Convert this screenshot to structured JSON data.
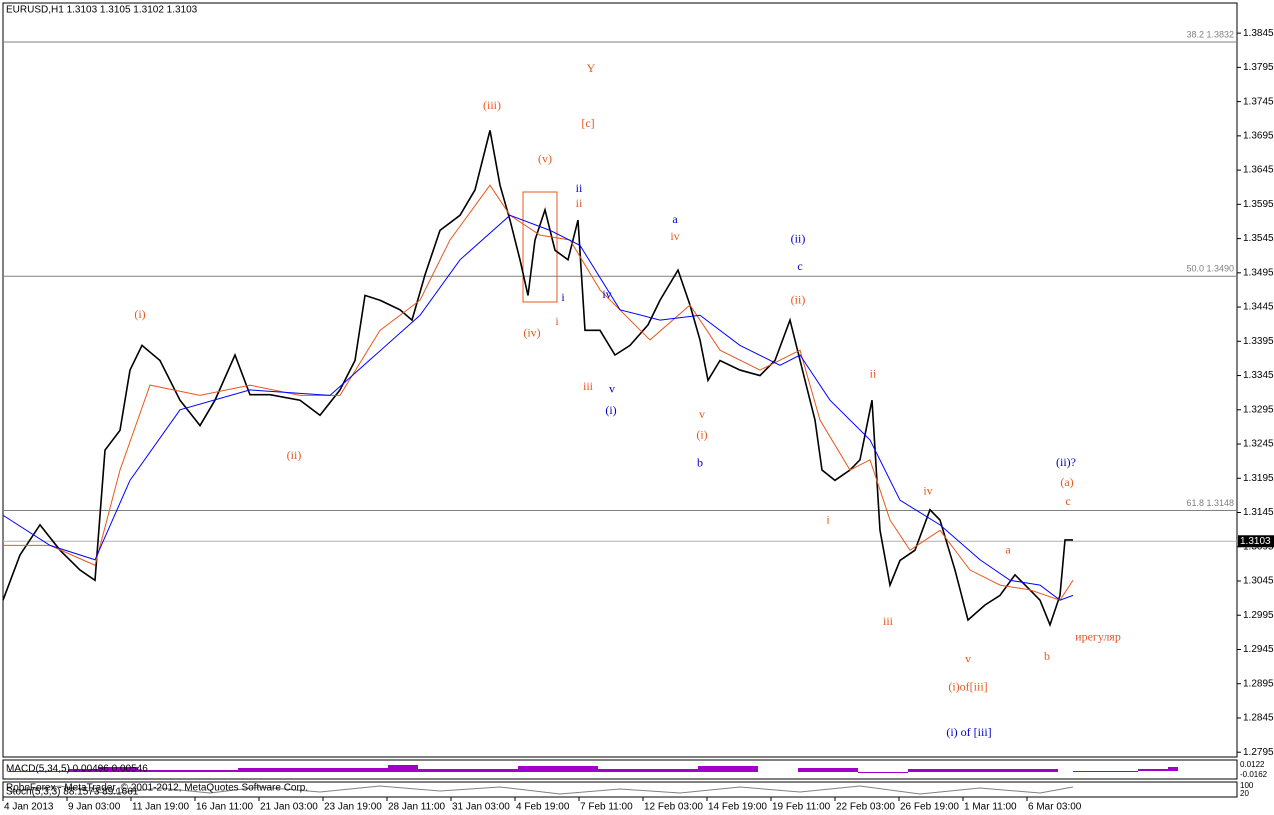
{
  "chart_data": {
    "type": "line",
    "title": "EURUSD,H1  1.3103 1.3105 1.3102 1.3103",
    "xlim": [
      0,
      1234
    ],
    "xticks": [
      {
        "value": 0,
        "label": "4 Jan 2013"
      },
      {
        "value": 64,
        "label": "9 Jan 03:00"
      },
      {
        "value": 128,
        "label": "11 Jan 19:00"
      },
      {
        "value": 192,
        "label": "16 Jan 11:00"
      },
      {
        "value": 256,
        "label": "21 Jan 03:00"
      },
      {
        "value": 320,
        "label": "23 Jan 19:00"
      },
      {
        "value": 384,
        "label": "28 Jan 11:00"
      },
      {
        "value": 448,
        "label": "31 Jan 03:00"
      },
      {
        "value": 512,
        "label": "4 Feb 19:00"
      },
      {
        "value": 576,
        "label": "7 Feb 11:00"
      },
      {
        "value": 640,
        "label": "12 Feb 03:00"
      },
      {
        "value": 704,
        "label": "14 Feb 19:00"
      },
      {
        "value": 768,
        "label": "19 Feb 11:00"
      },
      {
        "value": 832,
        "label": "22 Feb 03:00"
      },
      {
        "value": 896,
        "label": "26 Feb 19:00"
      },
      {
        "value": 960,
        "label": "1 Mar 11:00"
      },
      {
        "value": 1024,
        "label": "6 Mar 03:00"
      }
    ],
    "ylim": [
      1.2788,
      1.3889
    ],
    "yticks": [
      1.3845,
      1.3795,
      1.3745,
      1.3695,
      1.3645,
      1.3595,
      1.3545,
      1.3495,
      1.3445,
      1.3395,
      1.3345,
      1.3295,
      1.3245,
      1.3195,
      1.3145,
      1.3095,
      1.3045,
      1.2995,
      1.2945,
      1.2895,
      1.2845,
      1.2795
    ],
    "series": [
      {
        "color": "#000000",
        "x": [
          0,
          17,
          37,
          57,
          77,
          92,
          102,
          117,
          127,
          139,
          157,
          177,
          197,
          212,
          232,
          247,
          267,
          297,
          317,
          337,
          352,
          362,
          377,
          397,
          409,
          422,
          437,
          457,
          472,
          487,
          497,
          507,
          517,
          525,
          532,
          542,
          552,
          565,
          575,
          582,
          597,
          612,
          627,
          645,
          657,
          675,
          687,
          697,
          705,
          717,
          737,
          757,
          772,
          787,
          802,
          812,
          819,
          832,
          847,
          857,
          869,
          877,
          887,
          897,
          912,
          927,
          937,
          952,
          965,
          982,
          997,
          1012,
          1027,
          1037,
          1047,
          1057,
          1062,
          1070
        ],
        "values": [
          1.3017,
          1.3083,
          1.3127,
          1.309,
          1.3061,
          1.3046,
          1.3236,
          1.3265,
          1.3353,
          1.3389,
          1.3367,
          1.3309,
          1.3272,
          1.3309,
          1.3375,
          1.3317,
          1.3317,
          1.3309,
          1.3287,
          1.3324,
          1.3367,
          1.3462,
          1.3455,
          1.3441,
          1.3426,
          1.3492,
          1.3557,
          1.3579,
          1.3616,
          1.3703,
          1.3623,
          1.3572,
          1.3514,
          1.3462,
          1.3543,
          1.3587,
          1.3528,
          1.3514,
          1.3572,
          1.3411,
          1.3411,
          1.3375,
          1.3389,
          1.3419,
          1.3455,
          1.3499,
          1.3448,
          1.3397,
          1.3338,
          1.3367,
          1.3353,
          1.3345,
          1.3367,
          1.3426,
          1.3338,
          1.328,
          1.3207,
          1.3192,
          1.3207,
          1.3222,
          1.3309,
          1.3119,
          1.3039,
          1.3075,
          1.309,
          1.3149,
          1.3134,
          1.3061,
          1.2988,
          1.301,
          1.3024,
          1.3054,
          1.3032,
          1.3017,
          1.2981,
          1.3024,
          1.3105,
          1.3105
        ]
      },
      {
        "color": "#e8581c",
        "x": [
          0,
          47,
          92,
          117,
          147,
          197,
          247,
          297,
          337,
          377,
          417,
          447,
          487,
          507,
          537,
          567,
          597,
          647,
          687,
          717,
          757,
          797,
          817,
          847,
          867,
          887,
          907,
          937,
          967,
          997,
          1027,
          1057,
          1070
        ],
        "values": [
          1.3097,
          1.3097,
          1.3068,
          1.3207,
          1.3331,
          1.3316,
          1.3331,
          1.3316,
          1.3316,
          1.3411,
          1.3455,
          1.3543,
          1.3623,
          1.3579,
          1.355,
          1.3543,
          1.347,
          1.3397,
          1.3448,
          1.3382,
          1.3353,
          1.3382,
          1.328,
          1.3207,
          1.3222,
          1.3134,
          1.309,
          1.3119,
          1.3061,
          1.3039,
          1.3032,
          1.3017,
          1.3046
        ]
      },
      {
        "color": "#0000ff",
        "x": [
          0,
          47,
          92,
          127,
          177,
          247,
          327,
          367,
          417,
          457,
          507,
          547,
          577,
          617,
          657,
          697,
          737,
          777,
          797,
          827,
          867,
          897,
          937,
          977,
          1007,
          1037,
          1057,
          1070
        ],
        "values": [
          1.3141,
          1.3097,
          1.3076,
          1.3192,
          1.3295,
          1.3324,
          1.3316,
          1.3368,
          1.3433,
          1.3514,
          1.3579,
          1.3557,
          1.3535,
          1.3441,
          1.3426,
          1.3433,
          1.3389,
          1.336,
          1.3375,
          1.3309,
          1.3251,
          1.3163,
          1.3127,
          1.3076,
          1.3046,
          1.3039,
          1.3017,
          1.3024
        ]
      }
    ],
    "levels": [
      {
        "value": 1.3832,
        "label": "38.2 1.3832",
        "color": "#808080"
      },
      {
        "value": 1.349,
        "label": "50.0 1.3490",
        "color": "#808080"
      },
      {
        "value": 1.3148,
        "label": "61.8 1.3148",
        "color": "#808080"
      }
    ],
    "current_price": 1.3103,
    "annotations": [
      {
        "text": "Y",
        "x": 588,
        "y": 1.3792,
        "color": "#e8581c"
      },
      {
        "text": "[c]",
        "x": 585,
        "y": 1.3712,
        "color": "#e8581c"
      },
      {
        "text": "(iii)",
        "x": 489,
        "y": 1.3738,
        "color": "#e8581c"
      },
      {
        "text": "(v)",
        "x": 542,
        "y": 1.366,
        "color": "#e8581c"
      },
      {
        "text": "ii",
        "x": 576,
        "y": 1.3617,
        "color": "#0000cc"
      },
      {
        "text": "ii",
        "x": 576,
        "y": 1.3595,
        "color": "#e8581c"
      },
      {
        "text": "a",
        "x": 672,
        "y": 1.3572,
        "color": "#0000cc"
      },
      {
        "text": "iv",
        "x": 672,
        "y": 1.3547,
        "color": "#e8581c"
      },
      {
        "text": "(ii)",
        "x": 795,
        "y": 1.3543,
        "color": "#0000cc"
      },
      {
        "text": "c",
        "x": 797,
        "y": 1.3503,
        "color": "#0000cc"
      },
      {
        "text": "(ii)",
        "x": 795,
        "y": 1.3454,
        "color": "#e8581c"
      },
      {
        "text": "(i)",
        "x": 137,
        "y": 1.3433,
        "color": "#e8581c"
      },
      {
        "text": "i",
        "x": 560,
        "y": 1.3458,
        "color": "#0000cc"
      },
      {
        "text": "iv",
        "x": 604,
        "y": 1.3462,
        "color": "#0000cc"
      },
      {
        "text": "(iv)",
        "x": 529,
        "y": 1.3406,
        "color": "#e8581c"
      },
      {
        "text": "i",
        "x": 554,
        "y": 1.3423,
        "color": "#e8581c"
      },
      {
        "text": "iii",
        "x": 585,
        "y": 1.3328,
        "color": "#e8581c"
      },
      {
        "text": "v",
        "x": 609,
        "y": 1.3324,
        "color": "#0000cc"
      },
      {
        "text": "(i)",
        "x": 608,
        "y": 1.3293,
        "color": "#0000cc"
      },
      {
        "text": "ii",
        "x": 870,
        "y": 1.3346,
        "color": "#e8581c"
      },
      {
        "text": "v",
        "x": 699,
        "y": 1.3287,
        "color": "#e8581c"
      },
      {
        "text": "(i)",
        "x": 699,
        "y": 1.3257,
        "color": "#e8581c"
      },
      {
        "text": "(ii)",
        "x": 291,
        "y": 1.3227,
        "color": "#e8581c"
      },
      {
        "text": "b",
        "x": 697,
        "y": 1.3216,
        "color": "#0000cc"
      },
      {
        "text": "(ii)?",
        "x": 1063,
        "y": 1.3217,
        "color": "#0000cc"
      },
      {
        "text": "(a)",
        "x": 1064,
        "y": 1.3188,
        "color": "#e8581c"
      },
      {
        "text": "iv",
        "x": 925,
        "y": 1.3175,
        "color": "#e8581c"
      },
      {
        "text": "c",
        "x": 1065,
        "y": 1.316,
        "color": "#e8581c"
      },
      {
        "text": "i",
        "x": 825,
        "y": 1.3133,
        "color": "#e8581c"
      },
      {
        "text": "a",
        "x": 1005,
        "y": 1.3089,
        "color": "#e8581c"
      },
      {
        "text": "iii",
        "x": 885,
        "y": 1.2985,
        "color": "#e8581c"
      },
      {
        "text": "ирегуляр",
        "x": 1095,
        "y": 1.2962,
        "color": "#e8581c"
      },
      {
        "text": "b",
        "x": 1044,
        "y": 1.2934,
        "color": "#e8581c"
      },
      {
        "text": "v",
        "x": 965,
        "y": 1.293,
        "color": "#e8581c"
      },
      {
        "text": "(i)of[iii]",
        "x": 965,
        "y": 1.2889,
        "color": "#e8581c"
      },
      {
        "text": "(i) of [iii]",
        "x": 966,
        "y": 1.2823,
        "color": "#0000cc"
      }
    ],
    "macd_label": "MACD(5,34,5) 0.00496 0.00546",
    "macd_scale": [
      "0.0122",
      "-0.0162"
    ],
    "stoch_label": "Stoch(5,3,3) 88.1573 89.1661",
    "stoch_scale": [
      "100",
      "20"
    ],
    "copyright": "RoboForex - MetaTrader, © 2001-2012, MetaQuotes Software Corp."
  }
}
